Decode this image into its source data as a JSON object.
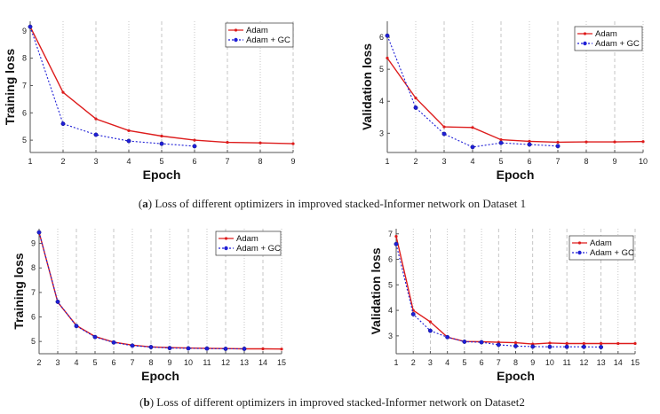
{
  "colors": {
    "adam": "#dd1c1c",
    "adam_gc": "#1f1fd6",
    "axis": "#555555",
    "grid": "#b8b8b8"
  },
  "captions": [
    {
      "label": "a",
      "text": " Loss of different optimizers in improved stacked-Informer network on Dataset 1"
    },
    {
      "label": "b",
      "text": " Loss of different optimizers in improved stacked-Informer network on Dataset2"
    }
  ],
  "chart_data": [
    {
      "id": "a-train",
      "type": "line",
      "xlabel": "Epoch",
      "ylabel": "Training loss",
      "xlim": [
        1,
        9
      ],
      "ylim": [
        4.55,
        9.35
      ],
      "xticks": [
        1,
        2,
        3,
        4,
        5,
        6,
        7,
        8,
        9
      ],
      "yticks": [
        5,
        6,
        7,
        8,
        9
      ],
      "legend": "top-right",
      "series": [
        {
          "name": "Adam",
          "x": [
            1,
            2,
            3,
            4,
            5,
            6,
            7,
            8,
            9
          ],
          "values": [
            9.15,
            6.75,
            5.78,
            5.35,
            5.15,
            5.0,
            4.92,
            4.9,
            4.87
          ]
        },
        {
          "name": "Adam + GC",
          "x": [
            1,
            2,
            3,
            4,
            5,
            6
          ],
          "values": [
            9.15,
            5.6,
            5.2,
            4.97,
            4.87,
            4.78
          ]
        }
      ]
    },
    {
      "id": "a-val",
      "type": "line",
      "xlabel": "Epoch",
      "ylabel": "Validation loss",
      "xlim": [
        1,
        10
      ],
      "ylim": [
        2.4,
        6.5
      ],
      "xticks": [
        1,
        2,
        3,
        4,
        5,
        6,
        7,
        8,
        9,
        10
      ],
      "yticks": [
        3,
        4,
        5,
        6
      ],
      "legend": "top-right",
      "series": [
        {
          "name": "Adam",
          "x": [
            1,
            2,
            3,
            4,
            5,
            6,
            7,
            8,
            9,
            10
          ],
          "values": [
            5.35,
            4.1,
            3.2,
            3.18,
            2.8,
            2.75,
            2.72,
            2.73,
            2.73,
            2.74
          ]
        },
        {
          "name": "Adam + GC",
          "x": [
            1,
            2,
            3,
            4,
            5,
            6,
            7
          ],
          "values": [
            6.05,
            3.8,
            2.98,
            2.57,
            2.7,
            2.65,
            2.6
          ]
        }
      ]
    },
    {
      "id": "b-train",
      "type": "line",
      "xlabel": "Epoch",
      "ylabel": "Training loss",
      "xlim": [
        2,
        15
      ],
      "ylim": [
        4.5,
        9.6
      ],
      "xticks": [
        2,
        3,
        4,
        5,
        6,
        7,
        8,
        9,
        10,
        11,
        12,
        13,
        14,
        15
      ],
      "yticks": [
        5,
        6,
        7,
        8,
        9
      ],
      "legend": "top-right",
      "series": [
        {
          "name": "Adam",
          "x": [
            2,
            3,
            4,
            5,
            6,
            7,
            8,
            9,
            10,
            11,
            12,
            13,
            14,
            15
          ],
          "values": [
            9.45,
            6.6,
            5.65,
            5.2,
            4.97,
            4.85,
            4.78,
            4.75,
            4.73,
            4.72,
            4.71,
            4.7,
            4.7,
            4.69
          ]
        },
        {
          "name": "Adam + GC",
          "x": [
            2,
            3,
            4,
            5,
            6,
            7,
            8,
            9,
            10,
            11,
            12,
            13
          ],
          "values": [
            9.45,
            6.62,
            5.63,
            5.18,
            4.96,
            4.83,
            4.77,
            4.73,
            4.72,
            4.71,
            4.7,
            4.7
          ]
        }
      ]
    },
    {
      "id": "b-val",
      "type": "line",
      "xlabel": "Epoch",
      "ylabel": "Validation loss",
      "xlim": [
        1,
        15
      ],
      "ylim": [
        2.3,
        7.2
      ],
      "xticks": [
        1,
        2,
        3,
        4,
        5,
        6,
        7,
        8,
        9,
        10,
        11,
        12,
        13,
        14,
        15
      ],
      "yticks": [
        3,
        4,
        5,
        6,
        7
      ],
      "legend": "top-right",
      "series": [
        {
          "name": "Adam",
          "x": [
            1,
            2,
            3,
            4,
            5,
            6,
            7,
            8,
            9,
            10,
            11,
            12,
            13,
            14,
            15
          ],
          "values": [
            6.9,
            4.0,
            3.55,
            2.95,
            2.78,
            2.77,
            2.75,
            2.73,
            2.68,
            2.72,
            2.7,
            2.7,
            2.7,
            2.7,
            2.7
          ]
        },
        {
          "name": "Adam + GC",
          "x": [
            1,
            2,
            3,
            4,
            5,
            6,
            7,
            8,
            9,
            10,
            11,
            12,
            13
          ],
          "values": [
            6.6,
            3.85,
            3.2,
            2.95,
            2.77,
            2.75,
            2.65,
            2.6,
            2.58,
            2.57,
            2.57,
            2.57,
            2.56
          ]
        }
      ]
    }
  ]
}
